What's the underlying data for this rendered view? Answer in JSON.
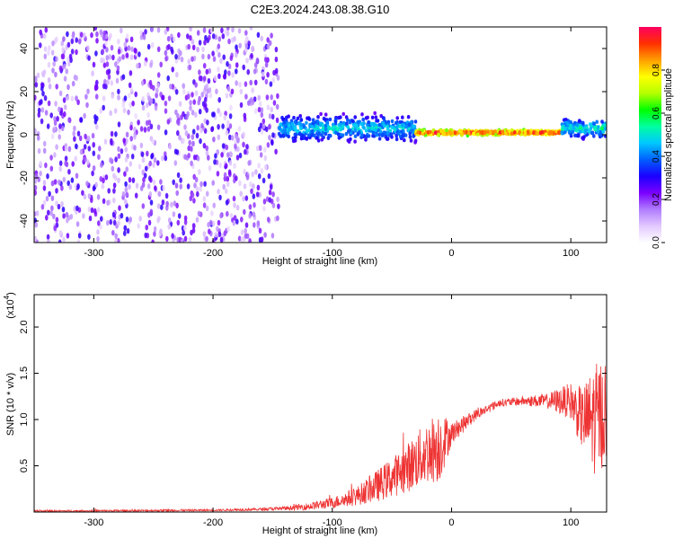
{
  "figure": {
    "title": "C2E3.2024.243.08.38.G10"
  },
  "chart_data": [
    {
      "type": "heatmap",
      "xlabel": "Height of straight line (km)",
      "ylabel": "Frequency (Hz)",
      "xlim": [
        -350,
        130
      ],
      "ylim": [
        -50,
        50
      ],
      "x_ticks": [
        -300,
        -200,
        -100,
        0,
        100
      ],
      "y_ticks": [
        -40,
        -20,
        0,
        20,
        40
      ],
      "colorbar": {
        "label": "Normalized spectral amplitude",
        "range": [
          0,
          1
        ],
        "ticks": [
          0.0,
          0.2,
          0.4,
          0.6,
          0.8
        ],
        "colormap": [
          "#ffffff",
          "#e2c8ff",
          "#b07cff",
          "#7a00ff",
          "#1a00ff",
          "#0060ff",
          "#00c8ff",
          "#00ffa0",
          "#00ff00",
          "#b4ff00",
          "#ffff00",
          "#ffa000",
          "#ff3000",
          "#ff0060"
        ]
      },
      "regions": [
        {
          "x_range": [
            -350,
            -145
          ],
          "spread_hz": 50,
          "amplitude": [
            0.05,
            0.3
          ],
          "description": "noise"
        },
        {
          "x_range": [
            -145,
            -30
          ],
          "center_hz": 3,
          "spread_hz": 8,
          "amplitude": [
            0.2,
            0.55
          ]
        },
        {
          "x_range": [
            -30,
            92
          ],
          "center_hz": 1,
          "spread_hz": 1.5,
          "amplitude": [
            0.6,
            1.0
          ]
        },
        {
          "x_range": [
            92,
            130
          ],
          "center_hz": 3,
          "spread_hz": 6,
          "amplitude": [
            0.2,
            0.6
          ]
        }
      ]
    },
    {
      "type": "line",
      "xlabel": "Height of straight line (km)",
      "ylabel": "SNR (10 * v/v)",
      "y_multiplier": "(x10",
      "y_multiplier_exp": "4",
      "xlim": [
        -350,
        130
      ],
      "ylim": [
        0,
        2.35
      ],
      "x_ticks": [
        -300,
        -200,
        -100,
        0,
        100
      ],
      "y_ticks": [
        0.5,
        1.0,
        1.5,
        2.0
      ],
      "series": [
        {
          "color": "#ee3333",
          "envelope": {
            "x": [
              -350,
              -200,
              -160,
              -140,
              -120,
              -100,
              -80,
              -60,
              -40,
              -20,
              -10,
              0,
              20,
              40,
              60,
              80,
              100,
              110,
              120,
              130
            ],
            "mean": [
              0.01,
              0.02,
              0.03,
              0.04,
              0.06,
              0.1,
              0.17,
              0.3,
              0.45,
              0.65,
              0.72,
              0.85,
              1.05,
              1.18,
              1.2,
              1.2,
              1.2,
              1.0,
              1.0,
              1.1
            ],
            "amp": [
              0.01,
              0.01,
              0.015,
              0.02,
              0.04,
              0.06,
              0.1,
              0.18,
              0.25,
              0.35,
              0.4,
              0.12,
              0.06,
              0.04,
              0.05,
              0.08,
              0.2,
              0.35,
              0.6,
              0.6
            ]
          }
        }
      ]
    }
  ]
}
